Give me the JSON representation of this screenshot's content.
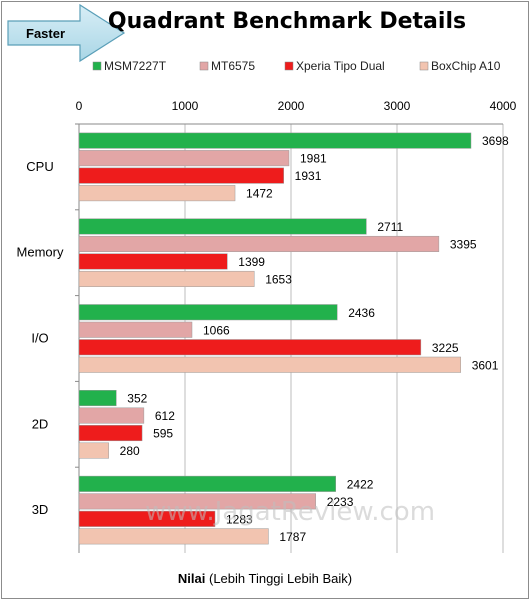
{
  "chart_data": {
    "type": "bar",
    "orientation": "horizontal",
    "title": "Quadrant Benchmark Details",
    "badge": "Faster",
    "watermark": "www.JagatReview.com",
    "xlabel_bold": "Nilai",
    "xlabel_rest": " (Lebih Tinggi Lebih Baik)",
    "xlim": [
      0,
      4000
    ],
    "xticks": [
      0,
      1000,
      2000,
      3000,
      4000
    ],
    "grid": true,
    "legend_position": "top",
    "categories": [
      "CPU",
      "Memory",
      "I/O",
      "2D",
      "3D"
    ],
    "series": [
      {
        "name": "MSM7227T",
        "color": "#22b14c",
        "values": [
          3698,
          2711,
          2436,
          352,
          2422
        ]
      },
      {
        "name": "MT6575",
        "color": "#e2a6a6",
        "values": [
          1981,
          3395,
          1066,
          612,
          2233
        ]
      },
      {
        "name": "Xperia Tipo Dual",
        "color": "#ee1c1c",
        "values": [
          1931,
          1399,
          3225,
          595,
          1283
        ]
      },
      {
        "name": "BoxChip A10",
        "color": "#f2c4b0",
        "values": [
          1472,
          1653,
          3601,
          280,
          1787
        ]
      }
    ]
  }
}
